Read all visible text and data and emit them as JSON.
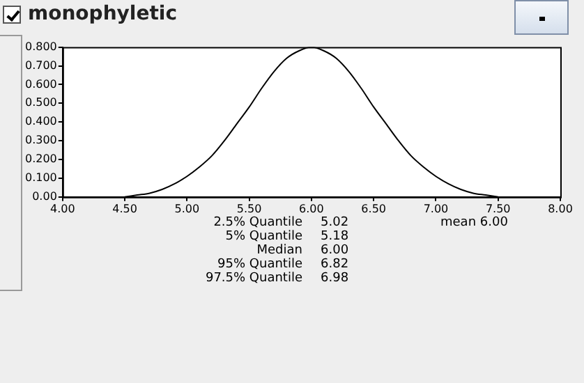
{
  "chart_data": {
    "type": "line",
    "title": "monophyletic",
    "x": [
      4.5,
      4.6,
      4.7,
      4.8,
      4.9,
      5.0,
      5.1,
      5.2,
      5.3,
      5.4,
      5.5,
      5.6,
      5.7,
      5.8,
      5.9,
      6.0,
      6.1,
      6.2,
      6.3,
      6.4,
      6.5,
      6.6,
      6.7,
      6.8,
      6.9,
      7.0,
      7.1,
      7.2,
      7.3,
      7.4,
      7.5
    ],
    "series": [
      {
        "color": "#000000",
        "values": [
          0.0,
          0.01,
          0.02,
          0.04,
          0.07,
          0.11,
          0.16,
          0.22,
          0.3,
          0.39,
          0.48,
          0.58,
          0.67,
          0.74,
          0.78,
          0.8,
          0.78,
          0.74,
          0.67,
          0.58,
          0.48,
          0.39,
          0.3,
          0.22,
          0.16,
          0.11,
          0.07,
          0.04,
          0.02,
          0.01,
          0.0
        ]
      }
    ],
    "xlim": [
      4,
      8
    ],
    "xticks": [
      {
        "value": 4,
        "label": "4.00"
      },
      {
        "value": 4.5,
        "label": "4.50"
      },
      {
        "value": 5,
        "label": "5.00"
      },
      {
        "value": 5.5,
        "label": "5.50"
      },
      {
        "value": 6,
        "label": "6.00"
      },
      {
        "value": 6.5,
        "label": "6.50"
      },
      {
        "value": 7,
        "label": "7.00"
      },
      {
        "value": 7.5,
        "label": "7.50"
      },
      {
        "value": 8,
        "label": "8.00"
      }
    ],
    "ylim": [
      0,
      0.8
    ],
    "yticks": [
      {
        "value": 0,
        "label": "0.00"
      },
      {
        "value": 0.1,
        "label": "0.100"
      },
      {
        "value": 0.2,
        "label": "0.200"
      },
      {
        "value": 0.3,
        "label": "0.300"
      },
      {
        "value": 0.4,
        "label": "0.400"
      },
      {
        "value": 0.5,
        "label": "0.500"
      },
      {
        "value": 0.6,
        "label": "0.600"
      },
      {
        "value": 0.7,
        "label": "0.700"
      },
      {
        "value": 0.8,
        "label": "0.800"
      }
    ],
    "marker": "none",
    "line_style": "solid",
    "annotations": [
      "2.5% Quantile",
      "5.02",
      "5% Quantile",
      "5.18",
      "Median",
      "6.00",
      "95% Quantile",
      "6.82",
      "97.5% Quantile",
      "6.98",
      "mean 6.00"
    ]
  }
}
